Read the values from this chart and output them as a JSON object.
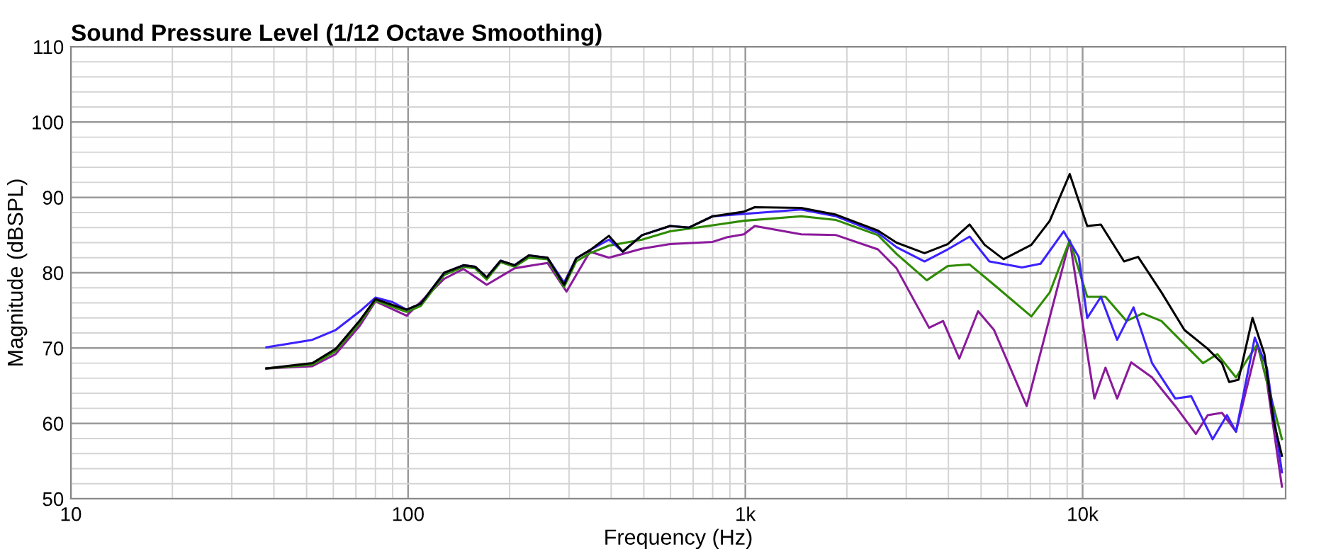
{
  "chart_data": {
    "type": "line",
    "title": "Sound Pressure Level (1/12 Octave Smoothing)",
    "xlabel": "Frequency (Hz)",
    "ylabel": "Magnitude (dBSPL)",
    "log": "x",
    "grid": true,
    "line_style": "solid",
    "xlim": [
      10,
      40000
    ],
    "ylim": [
      50,
      110
    ],
    "xticks": [
      {
        "value": 10,
        "label": "10"
      },
      {
        "value": 20,
        "label": null
      },
      {
        "value": 30,
        "label": null
      },
      {
        "value": 40,
        "label": null
      },
      {
        "value": 50,
        "label": null
      },
      {
        "value": 60,
        "label": null
      },
      {
        "value": 70,
        "label": null
      },
      {
        "value": 80,
        "label": null
      },
      {
        "value": 90,
        "label": null
      },
      {
        "value": 100,
        "label": "100"
      },
      {
        "value": 200,
        "label": null
      },
      {
        "value": 300,
        "label": null
      },
      {
        "value": 400,
        "label": null
      },
      {
        "value": 500,
        "label": null
      },
      {
        "value": 600,
        "label": null
      },
      {
        "value": 700,
        "label": null
      },
      {
        "value": 800,
        "label": null
      },
      {
        "value": 900,
        "label": null
      },
      {
        "value": 1000,
        "label": "1k"
      },
      {
        "value": 2000,
        "label": null
      },
      {
        "value": 3000,
        "label": null
      },
      {
        "value": 4000,
        "label": null
      },
      {
        "value": 5000,
        "label": null
      },
      {
        "value": 6000,
        "label": null
      },
      {
        "value": 7000,
        "label": null
      },
      {
        "value": 8000,
        "label": null
      },
      {
        "value": 9000,
        "label": null
      },
      {
        "value": 10000,
        "label": "10k"
      },
      {
        "value": 20000,
        "label": null
      },
      {
        "value": 30000,
        "label": null
      }
    ],
    "yticks": [
      50,
      {
        "value": 52,
        "label": null
      },
      {
        "value": 54,
        "label": null
      },
      {
        "value": 56,
        "label": null
      },
      {
        "value": 58,
        "label": null
      },
      60,
      {
        "value": 62,
        "label": null
      },
      {
        "value": 64,
        "label": null
      },
      {
        "value": 66,
        "label": null
      },
      {
        "value": 68,
        "label": null
      },
      70,
      {
        "value": 72,
        "label": null
      },
      {
        "value": 74,
        "label": null
      },
      {
        "value": 76,
        "label": null
      },
      {
        "value": 78,
        "label": null
      },
      80,
      {
        "value": 82,
        "label": null
      },
      {
        "value": 84,
        "label": null
      },
      {
        "value": 86,
        "label": null
      },
      {
        "value": 88,
        "label": null
      },
      90,
      {
        "value": 92,
        "label": null
      },
      {
        "value": 94,
        "label": null
      },
      {
        "value": 96,
        "label": null
      },
      {
        "value": 98,
        "label": null
      },
      100,
      {
        "value": 102,
        "label": null
      },
      {
        "value": 104,
        "label": null
      },
      {
        "value": 106,
        "label": null
      },
      {
        "value": 108,
        "label": null
      },
      110
    ],
    "series": [
      {
        "color": "#000000",
        "x": [
          38,
          52,
          61,
          72,
          80,
          99,
          109,
          128,
          146,
          158,
          171,
          188,
          207,
          228,
          259,
          290,
          315,
          346,
          394,
          433,
          494,
          598,
          681,
          800,
          990,
          1066,
          1464,
          1858,
          2472,
          2807,
          3399,
          3981,
          4623,
          5124,
          5828,
          7047,
          7993,
          9159,
          10320,
          11330,
          13270,
          14610,
          17130,
          20040,
          23500,
          25900,
          27200,
          29000,
          31900,
          34600,
          36800,
          39000
        ],
        "values": [
          67.3,
          68,
          69.9,
          73.7,
          76.5,
          75.1,
          75.9,
          80,
          81,
          80.8,
          79.4,
          81.6,
          81,
          82.3,
          82,
          78.4,
          81.9,
          83,
          84.9,
          82.8,
          85,
          86.2,
          86,
          87.5,
          88.1,
          88.7,
          88.6,
          87.7,
          85.6,
          84,
          82.6,
          83.8,
          86.4,
          83.7,
          81.8,
          83.7,
          86.9,
          93.1,
          86.2,
          86.4,
          81.5,
          82.1,
          77.4,
          72.4,
          69.9,
          68,
          65.5,
          65.8,
          74,
          69.2,
          60.4,
          55.7
        ]
      },
      {
        "color": "#3b22ff",
        "x": [
          38,
          52,
          61,
          72,
          80,
          90,
          99,
          109,
          128,
          146,
          158,
          171,
          188,
          207,
          228,
          259,
          290,
          315,
          346,
          394,
          433,
          494,
          598,
          681,
          800,
          990,
          1464,
          1858,
          2472,
          2807,
          3399,
          3981,
          4623,
          5290,
          6614,
          7505,
          8786,
          9741,
          10320,
          11330,
          12660,
          14160,
          16070,
          18830,
          21000,
          24300,
          26800,
          28500,
          32400,
          35200,
          39000
        ],
        "values": [
          70.1,
          71.1,
          72.4,
          74.9,
          76.7,
          76.1,
          75.1,
          75.9,
          80,
          81,
          80.8,
          79.4,
          81.6,
          81,
          82.3,
          82,
          78.7,
          81.9,
          83,
          84.4,
          82.8,
          85,
          86.2,
          86,
          87.5,
          87.8,
          88.4,
          87.5,
          85.3,
          83.4,
          81.5,
          83.1,
          84.8,
          81.5,
          80.7,
          81.2,
          85.5,
          82.1,
          74,
          76.8,
          71.1,
          75.4,
          68,
          63.3,
          63.6,
          57.9,
          61.1,
          58.9,
          71.4,
          67.4,
          53.5
        ]
      },
      {
        "color": "#2e8b00",
        "x": [
          38,
          52,
          61,
          72,
          80,
          99,
          109,
          128,
          146,
          158,
          171,
          188,
          207,
          228,
          259,
          290,
          315,
          346,
          394,
          494,
          598,
          800,
          990,
          1464,
          1858,
          2472,
          2807,
          3451,
          3981,
          4623,
          5463,
          7047,
          7993,
          9159,
          10320,
          11690,
          13490,
          15080,
          17130,
          22760,
          25100,
          28500,
          30900,
          33000,
          39000
        ],
        "values": [
          67.3,
          67.8,
          69.6,
          73.4,
          76.3,
          74.8,
          75.6,
          79.7,
          80.8,
          80.6,
          79.1,
          81.4,
          80.8,
          82,
          81.8,
          78.1,
          81.5,
          82.6,
          83.6,
          84.4,
          85.5,
          86.3,
          86.9,
          87.5,
          87,
          85,
          82.5,
          79,
          80.9,
          81.1,
          78.4,
          74.2,
          77.4,
          84.3,
          76.8,
          76.8,
          73.6,
          74.6,
          73.6,
          68,
          69.2,
          66.1,
          68.6,
          70.5,
          57.9
        ]
      },
      {
        "color": "#8b1a9b",
        "x": [
          38,
          52,
          61,
          72,
          80,
          99,
          128,
          146,
          171,
          207,
          259,
          295,
          346,
          394,
          494,
          598,
          800,
          880,
          990,
          1066,
          1464,
          1858,
          2472,
          2807,
          3506,
          3857,
          4309,
          4899,
          5463,
          6826,
          9159,
          10840,
          11690,
          12660,
          13930,
          16070,
          18830,
          21680,
          23500,
          25900,
          28500,
          33000,
          35200,
          39000
        ],
        "values": [
          67.3,
          67.6,
          69.2,
          73,
          76.2,
          74.3,
          79.2,
          80.5,
          78.4,
          80.6,
          81.3,
          77.5,
          82.8,
          82,
          83.2,
          83.8,
          84.1,
          84.7,
          85.1,
          86.2,
          85.1,
          85,
          83.1,
          80.6,
          72.7,
          73.6,
          68.6,
          74.9,
          72.4,
          62.3,
          84.3,
          63.3,
          67.4,
          63.3,
          68.1,
          66.1,
          62.3,
          58.6,
          61.1,
          61.4,
          58.9,
          70.5,
          65.5,
          51.6
        ]
      }
    ]
  }
}
